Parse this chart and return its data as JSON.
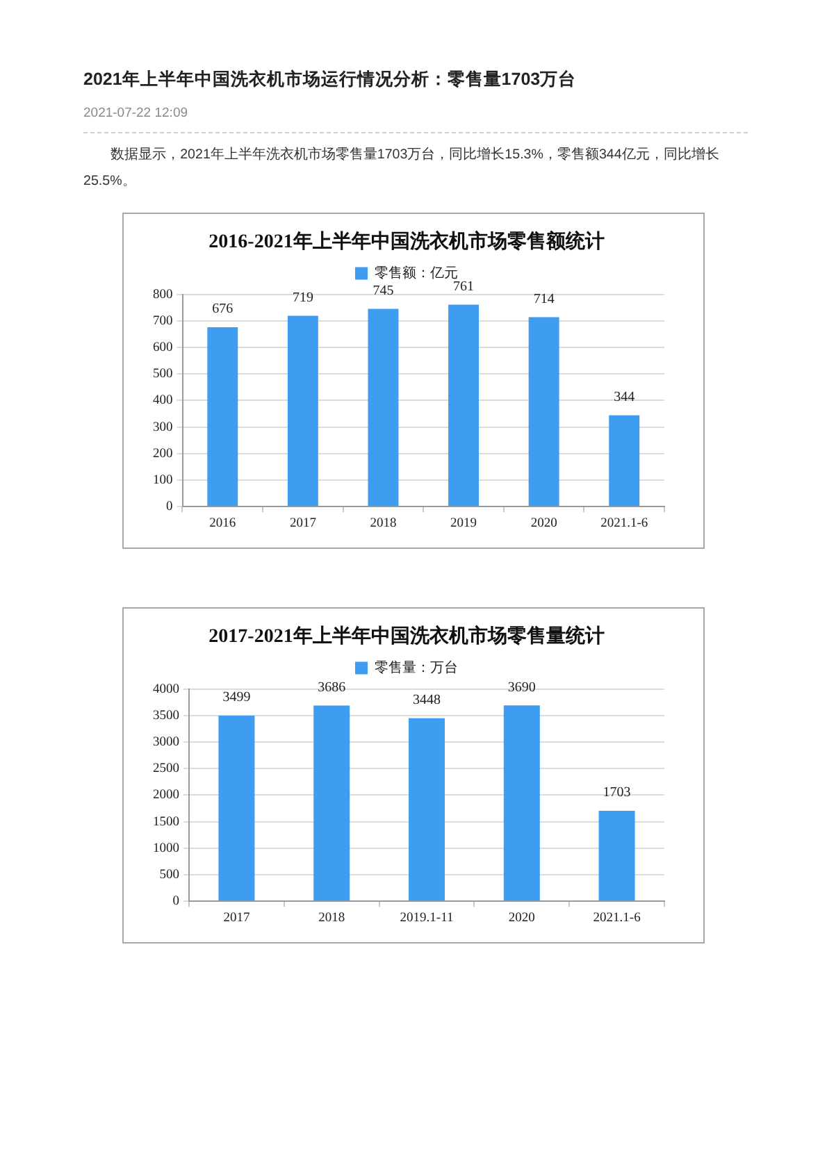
{
  "chart_data": [
    {
      "type": "other",
      "title": "2021年上半年中国洗衣机市场运行情况分析：零售量1703万台",
      "subtitle": "2021-07-22 12:09",
      "annotations": [
        "数据显示，2021年上半年洗衣机市场零售量1703万台，同比增长15.3%，零售额344亿元，同比增长25.5%。"
      ]
    },
    {
      "type": "bar",
      "title": "2016-2021年上半年中国洗衣机市场零售额统计",
      "categories": [
        "2016",
        "2017",
        "2018",
        "2019",
        "2020",
        "2021.1-6"
      ],
      "series": [
        {
          "name": "零售额：亿元",
          "color": "#3e9df0",
          "values": [
            676,
            719,
            745,
            761,
            714,
            344
          ]
        }
      ],
      "ylim": [
        0,
        800
      ],
      "yticks": [
        0,
        100,
        200,
        300,
        400,
        500,
        600,
        700,
        800
      ],
      "grid": "y",
      "legend": "top",
      "data_labels": true
    },
    {
      "type": "bar",
      "title": "2017-2021年上半年中国洗衣机市场零售量统计",
      "categories": [
        "2017",
        "2018",
        "2019.1-11",
        "2020",
        "2021.1-6"
      ],
      "series": [
        {
          "name": "零售量：万台",
          "color": "#3e9df0",
          "values": [
            3499,
            3686,
            3448,
            3690,
            1703
          ]
        }
      ],
      "ylim": [
        0,
        4000
      ],
      "yticks": [
        0,
        500,
        1000,
        1500,
        2000,
        2500,
        3000,
        3500,
        4000
      ],
      "grid": "y",
      "legend": "top",
      "data_labels": true
    }
  ]
}
